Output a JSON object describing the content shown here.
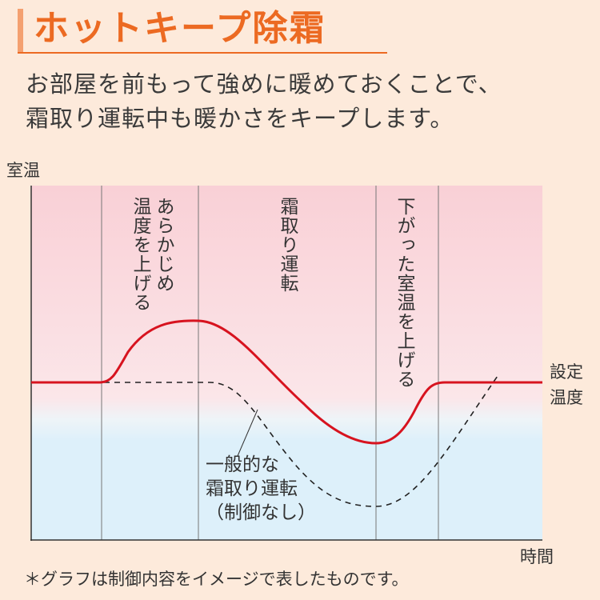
{
  "header": {
    "title": "ホットキープ除霜",
    "lead_lines": [
      "お部屋を前もって強めに暖めておくことで、",
      "霜取り運転中も暖かさをキープします。"
    ]
  },
  "chart": {
    "y_label": "室温",
    "x_label": "時間",
    "setpoint_label": [
      "設定",
      "温度"
    ],
    "phase_labels": {
      "preheat": [
        "あらかじめ",
        "温度を上げる"
      ],
      "defrost": "霜取り運転",
      "recover": "下がった室温を上げる"
    },
    "comparison_label": [
      "一般的な",
      "霜取り運転",
      "（制御なし）"
    ],
    "colors": {
      "hot_keep_line": "#d7131f",
      "normal_line": "#222222",
      "warm_zone": "#f9d2d8",
      "cool_zone": "#ddf0fa"
    }
  },
  "footnote": "＊グラフは制御内容をイメージで表したものです。"
}
